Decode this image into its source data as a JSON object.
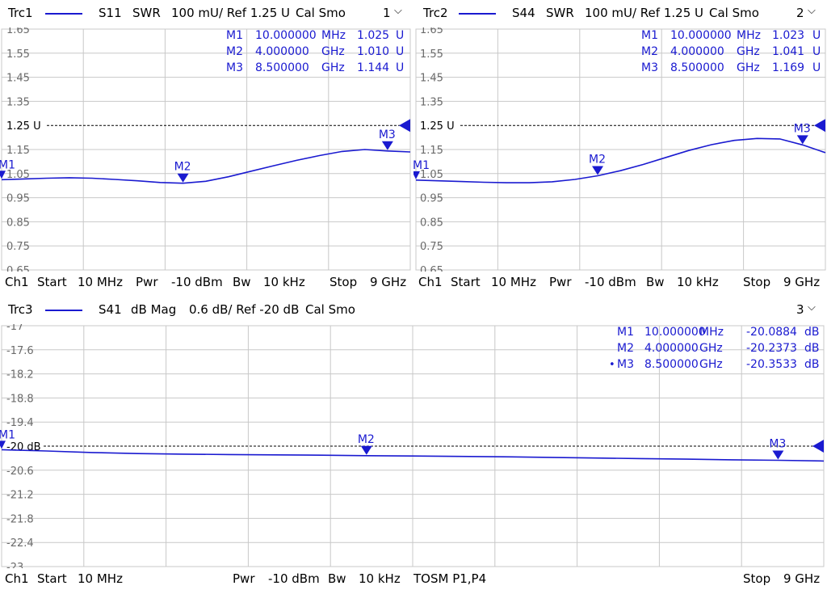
{
  "colors": {
    "trace": "#1a1ad0",
    "grid": "#c8c8c8",
    "marker": "#1a1ad0",
    "ref": "#000000",
    "text": "#6b6b6b",
    "marker_text": "#1a1ad0"
  },
  "panels": [
    {
      "id": "trc1",
      "header": {
        "trace": "Trc1",
        "param": "S11",
        "format": "SWR",
        "scale": "100 mU/ Ref 1.25 U",
        "cal": "Cal Smo",
        "num": "1"
      },
      "footer": {
        "ch": "Ch1",
        "start_label": "Start",
        "start_val": "10 MHz",
        "pwr_label": "Pwr",
        "pwr_val": "-10 dBm",
        "bw_label": "Bw",
        "bw_val": "10 kHz",
        "extra": "",
        "stop_label": "Stop",
        "stop_val": "9 GHz"
      },
      "ref_label": "1.25 U",
      "markers": [
        {
          "name": "M1",
          "freq": "10.000000",
          "unit": "MHz",
          "value": "1.025",
          "vunit": "U",
          "x_ghz": 0.01,
          "y": 1.025,
          "dot": false
        },
        {
          "name": "M2",
          "freq": "4.000000",
          "unit": "GHz",
          "value": "1.010",
          "vunit": "U",
          "x_ghz": 4.0,
          "y": 1.01,
          "dot": false
        },
        {
          "name": "M3",
          "freq": "8.500000",
          "unit": "GHz",
          "value": "1.144",
          "vunit": "U",
          "x_ghz": 8.5,
          "y": 1.144,
          "dot": false
        }
      ]
    },
    {
      "id": "trc2",
      "header": {
        "trace": "Trc2",
        "param": "S44",
        "format": "SWR",
        "scale": "100 mU/ Ref 1.25 U",
        "cal": "Cal Smo",
        "num": "2"
      },
      "footer": {
        "ch": "Ch1",
        "start_label": "Start",
        "start_val": "10 MHz",
        "pwr_label": "Pwr",
        "pwr_val": "-10 dBm",
        "bw_label": "Bw",
        "bw_val": "10 kHz",
        "extra": "",
        "stop_label": "Stop",
        "stop_val": "9 GHz"
      },
      "ref_label": "1.25 U",
      "markers": [
        {
          "name": "M1",
          "freq": "10.000000",
          "unit": "MHz",
          "value": "1.023",
          "vunit": "U",
          "x_ghz": 0.01,
          "y": 1.023,
          "dot": false
        },
        {
          "name": "M2",
          "freq": "4.000000",
          "unit": "GHz",
          "value": "1.041",
          "vunit": "U",
          "x_ghz": 4.0,
          "y": 1.041,
          "dot": false
        },
        {
          "name": "M3",
          "freq": "8.500000",
          "unit": "GHz",
          "value": "1.169",
          "vunit": "U",
          "x_ghz": 8.5,
          "y": 1.169,
          "dot": false
        }
      ]
    },
    {
      "id": "trc3",
      "header": {
        "trace": "Trc3",
        "param": "S41",
        "format": "dB Mag",
        "scale": "0.6 dB/ Ref -20 dB",
        "cal": "Cal Smo",
        "num": "3"
      },
      "footer": {
        "ch": "Ch1",
        "start_label": "Start",
        "start_val": "10 MHz",
        "pwr_label": "Pwr",
        "pwr_val": "-10 dBm",
        "bw_label": "Bw",
        "bw_val": "10 kHz",
        "extra": "TOSM P1,P4",
        "stop_label": "Stop",
        "stop_val": "9 GHz"
      },
      "ref_label": "-20 dB",
      "markers": [
        {
          "name": "M1",
          "freq": "10.000000",
          "unit": "MHz",
          "value": "-20.0884",
          "vunit": "dB",
          "x_ghz": 0.01,
          "y": -20.0884,
          "dot": false
        },
        {
          "name": "M2",
          "freq": "4.000000",
          "unit": "GHz",
          "value": "-20.2373",
          "vunit": "dB",
          "x_ghz": 4.0,
          "y": -20.2373,
          "dot": false
        },
        {
          "name": "M3",
          "freq": "8.500000",
          "unit": "GHz",
          "value": "-20.3533",
          "vunit": "dB",
          "x_ghz": 8.5,
          "y": -20.3533,
          "dot": true
        }
      ]
    }
  ],
  "chart_data": [
    {
      "type": "line",
      "title": "Trc1 S11 SWR",
      "x_unit": "GHz",
      "xlim": [
        0.01,
        9.0
      ],
      "ylim": [
        0.65,
        1.65
      ],
      "reference": 1.25,
      "ytick_labels": [
        "1.65",
        "1.55",
        "1.45",
        "1.35",
        "1.25 U",
        "1.15",
        "1.05",
        "0.95",
        "0.85",
        "0.75",
        "0.65"
      ],
      "series": [
        {
          "name": "S11",
          "x": [
            0.01,
            0.5,
            1,
            1.5,
            2,
            2.5,
            3,
            3.5,
            4,
            4.5,
            5,
            5.5,
            6,
            6.5,
            7,
            7.5,
            8,
            8.5,
            9.0
          ],
          "y": [
            1.025,
            1.028,
            1.031,
            1.033,
            1.031,
            1.026,
            1.02,
            1.013,
            1.01,
            1.018,
            1.037,
            1.06,
            1.083,
            1.105,
            1.125,
            1.142,
            1.15,
            1.144,
            1.14
          ]
        }
      ]
    },
    {
      "type": "line",
      "title": "Trc2 S44 SWR",
      "x_unit": "GHz",
      "xlim": [
        0.01,
        9.0
      ],
      "ylim": [
        0.65,
        1.65
      ],
      "reference": 1.25,
      "ytick_labels": [
        "1.65",
        "1.55",
        "1.45",
        "1.35",
        "1.25 U",
        "1.15",
        "1.05",
        "0.95",
        "0.85",
        "0.75",
        "0.65"
      ],
      "series": [
        {
          "name": "S44",
          "x": [
            0.01,
            0.5,
            1,
            1.5,
            2,
            2.5,
            3,
            3.5,
            4,
            4.5,
            5,
            5.5,
            6,
            6.5,
            7,
            7.5,
            8,
            8.5,
            9.0
          ],
          "y": [
            1.023,
            1.02,
            1.017,
            1.014,
            1.012,
            1.012,
            1.016,
            1.026,
            1.041,
            1.062,
            1.088,
            1.117,
            1.146,
            1.17,
            1.188,
            1.196,
            1.194,
            1.169,
            1.137
          ]
        }
      ]
    },
    {
      "type": "line",
      "title": "Trc3 S41 dB Mag",
      "x_unit": "GHz",
      "xlim": [
        0.01,
        9.0
      ],
      "ylim": [
        -23.0,
        -17.0
      ],
      "reference": -20.0,
      "ytick_labels": [
        "-17",
        "-17.6",
        "-18.2",
        "-18.8",
        "-19.4",
        "-20 dB",
        "-20.6",
        "-21.2",
        "-21.8",
        "-22.4",
        "-23"
      ],
      "series": [
        {
          "name": "S41",
          "x": [
            0.01,
            0.5,
            1,
            1.5,
            2,
            2.5,
            3,
            3.5,
            4,
            4.5,
            5,
            5.5,
            6,
            6.5,
            7,
            7.5,
            8,
            8.5,
            9.0
          ],
          "y": [
            -20.088,
            -20.12,
            -20.16,
            -20.185,
            -20.2,
            -20.21,
            -20.218,
            -20.225,
            -20.237,
            -20.245,
            -20.255,
            -20.265,
            -20.28,
            -20.295,
            -20.31,
            -20.325,
            -20.34,
            -20.353,
            -20.37
          ]
        }
      ]
    }
  ]
}
